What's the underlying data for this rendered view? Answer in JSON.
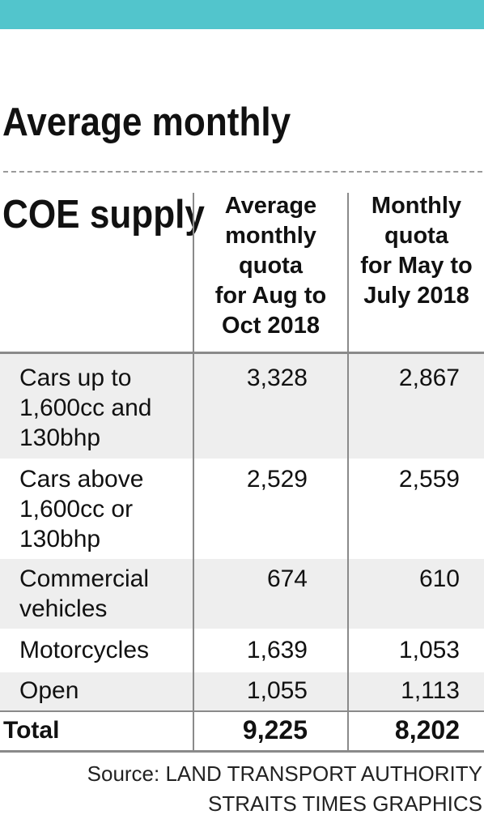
{
  "header": {
    "accent_color": "#52c5cc",
    "title_lines": [
      "Average monthly",
      "COE supply"
    ]
  },
  "chart_data": {
    "type": "table",
    "title": "Average monthly COE supply",
    "columns": [
      {
        "key": "aug_oct",
        "label_lines": [
          "Average",
          "monthly",
          "quota",
          "for Aug to",
          "Oct 2018"
        ]
      },
      {
        "key": "may_jul",
        "label_lines": [
          "Monthly",
          "quota",
          "for May to",
          "July 2018"
        ]
      }
    ],
    "rows": [
      {
        "label_lines": [
          "Cars up to",
          "1,600cc and",
          "130bhp"
        ],
        "aug_oct": "3,328",
        "may_jul": "2,867"
      },
      {
        "label_lines": [
          "Cars above",
          "1,600cc or",
          "130bhp"
        ],
        "aug_oct": "2,529",
        "may_jul": "2,559"
      },
      {
        "label_lines": [
          "Commercial",
          "vehicles"
        ],
        "aug_oct": "674",
        "may_jul": "610"
      },
      {
        "label_lines": [
          "Motorcycles"
        ],
        "aug_oct": "1,639",
        "may_jul": "1,053"
      },
      {
        "label_lines": [
          "Open"
        ],
        "aug_oct": "1,055",
        "may_jul": "1,113"
      }
    ],
    "total": {
      "label": "Total",
      "aug_oct": "9,225",
      "may_jul": "8,202"
    },
    "striped_rows_color": "#eeeeee"
  },
  "footer": {
    "source_line": "Source: LAND TRANSPORT AUTHORITY",
    "credit_line": "STRAITS TIMES GRAPHICS"
  }
}
